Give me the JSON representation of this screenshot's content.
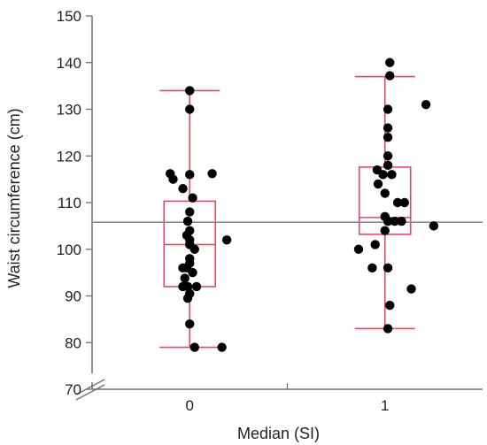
{
  "chart_data": {
    "type": "scatter",
    "subtype": "box-plot-with-jitter",
    "xlabel": "Median (SI)",
    "ylabel": "Waist circumference (cm)",
    "ylim": [
      70,
      150
    ],
    "yticks": [
      70,
      80,
      90,
      100,
      110,
      120,
      130,
      140,
      150
    ],
    "categories": [
      "0",
      "1"
    ],
    "reference_line": 105.8,
    "grid": false,
    "colors": {
      "box": "#e8475f",
      "points": "#000000",
      "reference": "#8a8a8a",
      "axis": "#707070"
    },
    "boxes": [
      {
        "category": "0",
        "min": 79,
        "q1": 92,
        "median": 101,
        "q3": 110.3,
        "max": 134
      },
      {
        "category": "1",
        "min": 83,
        "q1": 103.2,
        "median": 106.8,
        "q3": 117.6,
        "max": 137
      }
    ],
    "points": [
      {
        "group": "0",
        "jitter": 0.0,
        "y": 134
      },
      {
        "group": "0",
        "jitter": 0.0,
        "y": 130
      },
      {
        "group": "0",
        "jitter": -0.2,
        "y": 116.2
      },
      {
        "group": "0",
        "jitter": 0.0,
        "y": 116
      },
      {
        "group": "0",
        "jitter": 0.23,
        "y": 116.2
      },
      {
        "group": "0",
        "jitter": -0.17,
        "y": 115
      },
      {
        "group": "0",
        "jitter": -0.07,
        "y": 113
      },
      {
        "group": "0",
        "jitter": 0.03,
        "y": 111
      },
      {
        "group": "0",
        "jitter": 0.0,
        "y": 108
      },
      {
        "group": "0",
        "jitter": -0.02,
        "y": 106
      },
      {
        "group": "0",
        "jitter": 0.0,
        "y": 104
      },
      {
        "group": "0",
        "jitter": -0.03,
        "y": 103
      },
      {
        "group": "0",
        "jitter": 0.0,
        "y": 102
      },
      {
        "group": "0",
        "jitter": 0.38,
        "y": 102
      },
      {
        "group": "0",
        "jitter": 0.0,
        "y": 101
      },
      {
        "group": "0",
        "jitter": 0.05,
        "y": 100
      },
      {
        "group": "0",
        "jitter": 0.0,
        "y": 98
      },
      {
        "group": "0",
        "jitter": 0.0,
        "y": 97
      },
      {
        "group": "0",
        "jitter": -0.07,
        "y": 96
      },
      {
        "group": "0",
        "jitter": -0.03,
        "y": 96
      },
      {
        "group": "0",
        "jitter": 0.03,
        "y": 95
      },
      {
        "group": "0",
        "jitter": -0.05,
        "y": 93.8
      },
      {
        "group": "0",
        "jitter": -0.07,
        "y": 92
      },
      {
        "group": "0",
        "jitter": -0.02,
        "y": 92
      },
      {
        "group": "0",
        "jitter": 0.07,
        "y": 92
      },
      {
        "group": "0",
        "jitter": 0.0,
        "y": 90.5
      },
      {
        "group": "0",
        "jitter": -0.02,
        "y": 89.5
      },
      {
        "group": "0",
        "jitter": 0.0,
        "y": 84
      },
      {
        "group": "0",
        "jitter": 0.05,
        "y": 79
      },
      {
        "group": "0",
        "jitter": 0.33,
        "y": 79
      },
      {
        "group": "1",
        "jitter": 0.05,
        "y": 140
      },
      {
        "group": "1",
        "jitter": 0.05,
        "y": 137.2
      },
      {
        "group": "1",
        "jitter": 0.42,
        "y": 131
      },
      {
        "group": "1",
        "jitter": 0.03,
        "y": 130
      },
      {
        "group": "1",
        "jitter": 0.03,
        "y": 126
      },
      {
        "group": "1",
        "jitter": 0.03,
        "y": 124
      },
      {
        "group": "1",
        "jitter": 0.03,
        "y": 120
      },
      {
        "group": "1",
        "jitter": 0.03,
        "y": 118
      },
      {
        "group": "1",
        "jitter": -0.08,
        "y": 117
      },
      {
        "group": "1",
        "jitter": -0.02,
        "y": 116
      },
      {
        "group": "1",
        "jitter": 0.07,
        "y": 116
      },
      {
        "group": "1",
        "jitter": -0.07,
        "y": 114
      },
      {
        "group": "1",
        "jitter": 0.0,
        "y": 112
      },
      {
        "group": "1",
        "jitter": 0.13,
        "y": 110
      },
      {
        "group": "1",
        "jitter": 0.2,
        "y": 110
      },
      {
        "group": "1",
        "jitter": 0.0,
        "y": 107
      },
      {
        "group": "1",
        "jitter": 0.03,
        "y": 106
      },
      {
        "group": "1",
        "jitter": 0.1,
        "y": 106
      },
      {
        "group": "1",
        "jitter": 0.17,
        "y": 106
      },
      {
        "group": "1",
        "jitter": 0.5,
        "y": 105
      },
      {
        "group": "1",
        "jitter": 0.0,
        "y": 104
      },
      {
        "group": "1",
        "jitter": -0.1,
        "y": 101
      },
      {
        "group": "1",
        "jitter": -0.27,
        "y": 100
      },
      {
        "group": "1",
        "jitter": -0.13,
        "y": 96
      },
      {
        "group": "1",
        "jitter": 0.03,
        "y": 96
      },
      {
        "group": "1",
        "jitter": 0.27,
        "y": 91.5
      },
      {
        "group": "1",
        "jitter": 0.05,
        "y": 88
      },
      {
        "group": "1",
        "jitter": 0.03,
        "y": 83
      }
    ]
  }
}
